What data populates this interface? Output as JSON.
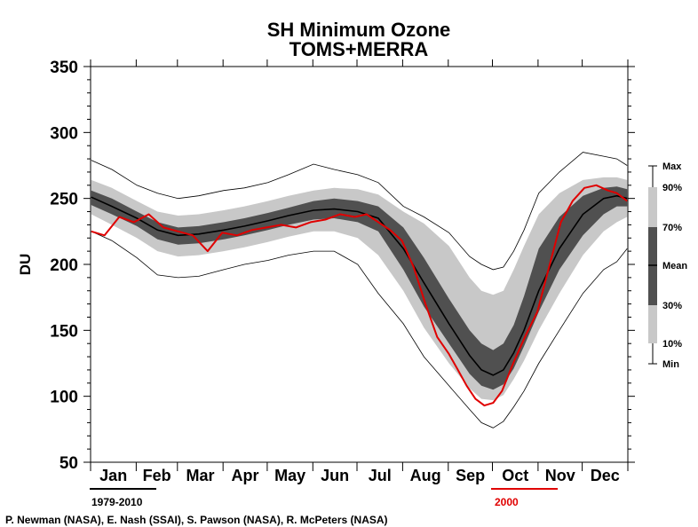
{
  "chart_data": {
    "type": "area",
    "title": "SH Minimum Ozone",
    "subtitle": "TOMS+MERRA",
    "ylabel": "DU",
    "ylim": [
      50,
      350
    ],
    "yticks": [
      50,
      100,
      150,
      200,
      250,
      300,
      350
    ],
    "months": [
      "Jan",
      "Feb",
      "Mar",
      "Apr",
      "May",
      "Jun",
      "Jul",
      "Aug",
      "Sep",
      "Oct",
      "Nov",
      "Dec"
    ],
    "x": [
      1,
      15,
      32,
      46,
      60,
      74,
      91,
      105,
      121,
      135,
      152,
      166,
      182,
      196,
      213,
      227,
      244,
      258,
      266,
      274,
      281,
      288,
      295,
      305,
      319,
      335,
      349,
      358,
      365
    ],
    "climatology": {
      "period": "1979-2010",
      "max": [
        279,
        272,
        260,
        254,
        250,
        252,
        256,
        258,
        262,
        268,
        276,
        272,
        268,
        262,
        244,
        236,
        224,
        206,
        200,
        196,
        198,
        210,
        226,
        254,
        270,
        285,
        282,
        280,
        275
      ],
      "p90": [
        264,
        258,
        248,
        240,
        237,
        238,
        241,
        244,
        248,
        252,
        256,
        258,
        257,
        253,
        240,
        231,
        214,
        190,
        180,
        177,
        180,
        196,
        214,
        238,
        254,
        264,
        266,
        266,
        264
      ],
      "p70": [
        256,
        250,
        240,
        232,
        228,
        229,
        232,
        235,
        239,
        243,
        248,
        250,
        248,
        244,
        228,
        205,
        174,
        150,
        140,
        135,
        140,
        154,
        176,
        212,
        236,
        252,
        258,
        259,
        257
      ],
      "mean": [
        251,
        244,
        235,
        226,
        222,
        223,
        226,
        229,
        233,
        237,
        241,
        242,
        240,
        235,
        212,
        186,
        155,
        131,
        120,
        116,
        120,
        133,
        150,
        180,
        212,
        238,
        250,
        252,
        250
      ],
      "p30": [
        245,
        238,
        229,
        219,
        215,
        216,
        219,
        222,
        226,
        230,
        234,
        235,
        232,
        225,
        196,
        168,
        140,
        117,
        108,
        105,
        109,
        121,
        138,
        164,
        196,
        222,
        238,
        244,
        244
      ],
      "p10": [
        238,
        230,
        220,
        210,
        206,
        207,
        210,
        213,
        217,
        221,
        225,
        225,
        220,
        207,
        180,
        152,
        125,
        106,
        98,
        97,
        101,
        113,
        127,
        150,
        178,
        207,
        225,
        232,
        236
      ],
      "min": [
        225,
        218,
        205,
        192,
        190,
        191,
        196,
        200,
        203,
        207,
        210,
        210,
        200,
        178,
        155,
        130,
        108,
        90,
        80,
        76,
        81,
        92,
        104,
        125,
        150,
        178,
        196,
        202,
        212
      ]
    },
    "year_series": {
      "name": "2000",
      "color": "#e00000",
      "x": [
        1,
        10,
        20,
        30,
        40,
        50,
        60,
        70,
        80,
        90,
        100,
        110,
        120,
        130,
        140,
        150,
        160,
        170,
        180,
        188,
        196,
        204,
        212,
        220,
        228,
        236,
        244,
        250,
        256,
        262,
        268,
        274,
        280,
        288,
        296,
        304,
        312,
        320,
        328,
        336,
        344,
        352,
        358,
        365
      ],
      "y": [
        225,
        222,
        236,
        232,
        238,
        228,
        225,
        222,
        210,
        224,
        222,
        226,
        228,
        230,
        228,
        232,
        234,
        238,
        236,
        238,
        232,
        226,
        218,
        198,
        170,
        145,
        132,
        120,
        108,
        98,
        93,
        95,
        104,
        126,
        146,
        164,
        198,
        232,
        248,
        258,
        260,
        256,
        254,
        248
      ]
    },
    "legend": {
      "labels": [
        "Max",
        "90%",
        "70%",
        "Mean",
        "30%",
        "10%",
        "Min"
      ],
      "placement": "right"
    },
    "colors": {
      "outer_band": "#c8c8c8",
      "inner_band": "#505050",
      "mean_line": "#000000",
      "extreme_lines": "#000000",
      "year_line": "#e00000"
    }
  },
  "footer": {
    "clim_label": "1979-2010",
    "year_label": "2000",
    "credits": "P. Newman (NASA), E. Nash (SSAI), S. Pawson (NASA), R. McPeters (NASA)"
  }
}
